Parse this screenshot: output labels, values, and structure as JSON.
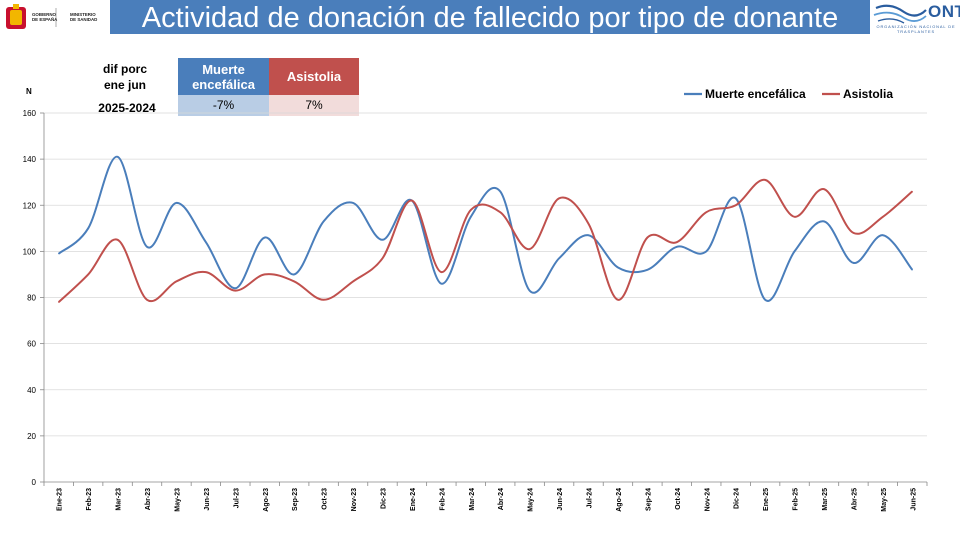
{
  "header": {
    "title": "Actividad de donación de fallecido por tipo de donante",
    "gov_logo_text": [
      "GOBIERNO",
      "DE ESPAÑA"
    ],
    "ministry_text": [
      "MINISTERIO",
      "DE SANIDAD"
    ],
    "ont_name": "ONT",
    "ont_subtitle": "ORGANIZACIÓN NACIONAL DE TRASPLANTES"
  },
  "comparison": {
    "label_line1": "dif porc",
    "label_line2": "ene jun",
    "period": "2025-2024",
    "columns": [
      {
        "name": "Muerte encefálica",
        "value": "-7%",
        "head_color": "#4a7ebb",
        "value_bg": "#b9cde5"
      },
      {
        "name": "Asistolia",
        "value": "7%",
        "head_color": "#c0504d",
        "value_bg": "#f2dcdb"
      }
    ]
  },
  "chart_data": {
    "type": "line",
    "ylabel": "N",
    "ylim": [
      0,
      160
    ],
    "yticks": [
      0,
      20,
      40,
      60,
      80,
      100,
      120,
      140,
      160
    ],
    "grid": true,
    "legend_position": "top-right",
    "categories": [
      "Ene-23",
      "Feb-23",
      "Mar-23",
      "Abr-23",
      "May-23",
      "Jun-23",
      "Jul-23",
      "Ago-23",
      "Sep-23",
      "Oct-23",
      "Nov-23",
      "Dic-23",
      "Ene-24",
      "Feb-24",
      "Mar-24",
      "Abr-24",
      "May-24",
      "Jun-24",
      "Jul-24",
      "Ago-24",
      "Sep-24",
      "Oct-24",
      "Nov-24",
      "Dic-24",
      "Ene-25",
      "Feb-25",
      "Mar-25",
      "Abr-25",
      "May-25",
      "Jun-25"
    ],
    "series": [
      {
        "name": "Muerte encefálica",
        "color": "#4a7ebb",
        "values": [
          99,
          110,
          141,
          102,
          121,
          104,
          84,
          106,
          90,
          113,
          121,
          105,
          122,
          86,
          115,
          126,
          83,
          97,
          107,
          93,
          92,
          102,
          100,
          123,
          79,
          100,
          113,
          95,
          107,
          92
        ]
      },
      {
        "name": "Asistolia",
        "color": "#c0504d",
        "values": [
          78,
          90,
          105,
          79,
          87,
          91,
          83,
          90,
          87,
          79,
          87,
          97,
          122,
          91,
          118,
          117,
          101,
          123,
          112,
          79,
          106,
          104,
          117,
          120,
          131,
          115,
          127,
          108,
          115,
          126
        ]
      }
    ]
  }
}
